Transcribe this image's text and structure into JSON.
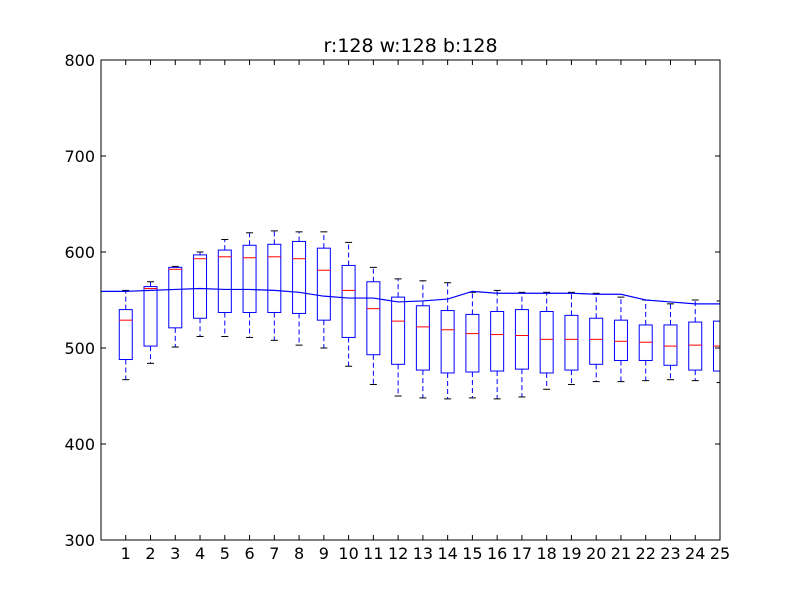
{
  "chart_data": {
    "type": "box",
    "title": "r:128 w:128 b:128",
    "xlabel": "",
    "ylabel": "",
    "ylim": [
      300,
      800
    ],
    "xlim": [
      0,
      25
    ],
    "yticks": [
      300,
      400,
      500,
      600,
      700,
      800
    ],
    "categories": [
      "1",
      "2",
      "3",
      "4",
      "5",
      "6",
      "7",
      "8",
      "9",
      "10",
      "11",
      "12",
      "13",
      "14",
      "15",
      "16",
      "17",
      "18",
      "19",
      "20",
      "21",
      "22",
      "23",
      "24",
      "25"
    ],
    "grid": false,
    "boxes": [
      {
        "whisker_low": 467,
        "q1": 488,
        "median": 529,
        "q3": 540,
        "whisker_high": 560
      },
      {
        "whisker_low": 484,
        "q1": 502,
        "median": 562,
        "q3": 564,
        "whisker_high": 569
      },
      {
        "whisker_low": 501,
        "q1": 521,
        "median": 582,
        "q3": 584,
        "whisker_high": 585
      },
      {
        "whisker_low": 512,
        "q1": 531,
        "median": 593,
        "q3": 597,
        "whisker_high": 600
      },
      {
        "whisker_low": 512,
        "q1": 537,
        "median": 595,
        "q3": 602,
        "whisker_high": 613
      },
      {
        "whisker_low": 511,
        "q1": 537,
        "median": 594,
        "q3": 607,
        "whisker_high": 620
      },
      {
        "whisker_low": 508,
        "q1": 537,
        "median": 595,
        "q3": 608,
        "whisker_high": 622
      },
      {
        "whisker_low": 503,
        "q1": 536,
        "median": 593,
        "q3": 611,
        "whisker_high": 621
      },
      {
        "whisker_low": 500,
        "q1": 529,
        "median": 581,
        "q3": 604,
        "whisker_high": 621
      },
      {
        "whisker_low": 481,
        "q1": 511,
        "median": 560,
        "q3": 586,
        "whisker_high": 610
      },
      {
        "whisker_low": 462,
        "q1": 493,
        "median": 541,
        "q3": 569,
        "whisker_high": 584
      },
      {
        "whisker_low": 450,
        "q1": 483,
        "median": 528,
        "q3": 553,
        "whisker_high": 572
      },
      {
        "whisker_low": 448,
        "q1": 477,
        "median": 522,
        "q3": 544,
        "whisker_high": 570
      },
      {
        "whisker_low": 447,
        "q1": 474,
        "median": 519,
        "q3": 539,
        "whisker_high": 568
      },
      {
        "whisker_low": 448,
        "q1": 475,
        "median": 515,
        "q3": 535,
        "whisker_high": 558
      },
      {
        "whisker_low": 447,
        "q1": 476,
        "median": 514,
        "q3": 538,
        "whisker_high": 560
      },
      {
        "whisker_low": 449,
        "q1": 478,
        "median": 513,
        "q3": 540,
        "whisker_high": 558
      },
      {
        "whisker_low": 457,
        "q1": 474,
        "median": 509,
        "q3": 538,
        "whisker_high": 558
      },
      {
        "whisker_low": 462,
        "q1": 477,
        "median": 509,
        "q3": 534,
        "whisker_high": 558
      },
      {
        "whisker_low": 465,
        "q1": 483,
        "median": 509,
        "q3": 531,
        "whisker_high": 557
      },
      {
        "whisker_low": 465,
        "q1": 487,
        "median": 507,
        "q3": 529,
        "whisker_high": 553
      },
      {
        "whisker_low": 466,
        "q1": 487,
        "median": 506,
        "q3": 524,
        "whisker_high": 550
      },
      {
        "whisker_low": 467,
        "q1": 482,
        "median": 502,
        "q3": 524,
        "whisker_high": 546
      },
      {
        "whisker_low": 466,
        "q1": 477,
        "median": 503,
        "q3": 527,
        "whisker_high": 550
      },
      {
        "whisker_low": 464,
        "q1": 476,
        "median": 502,
        "q3": 528,
        "whisker_high": 549
      }
    ],
    "line": {
      "x": [
        0,
        1,
        2,
        3,
        4,
        5,
        6,
        7,
        8,
        9,
        10,
        11,
        12,
        13,
        14,
        15,
        16,
        17,
        18,
        19,
        20,
        21,
        22,
        23,
        24,
        25
      ],
      "values": [
        559,
        559,
        560,
        561,
        562,
        561,
        561,
        560,
        558,
        554,
        552,
        552,
        548,
        549,
        551,
        559,
        557,
        557,
        557,
        557,
        556,
        556,
        550,
        548,
        546,
        546
      ]
    },
    "colors": {
      "box": "#0000ff",
      "median": "#ff0000",
      "whisker_cap": "#000000",
      "line": "#0000ff",
      "axes": "#000000"
    }
  }
}
